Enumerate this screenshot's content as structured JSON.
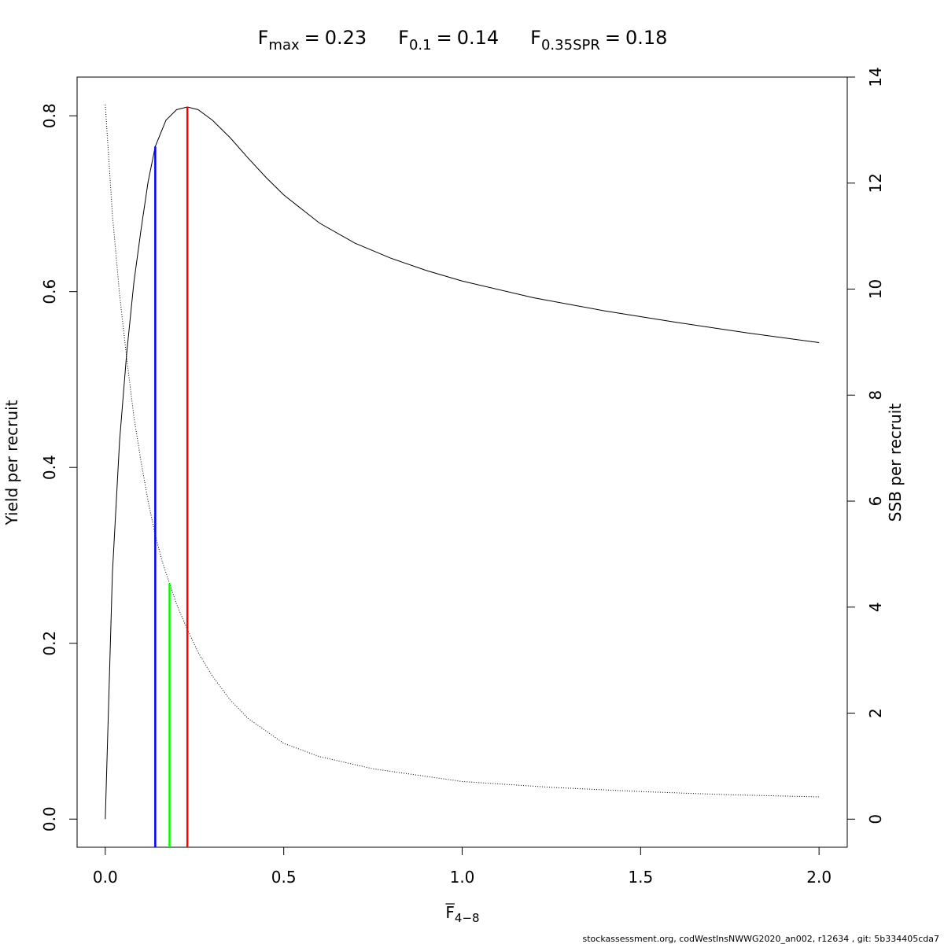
{
  "chart_data": {
    "type": "line",
    "equals": "=",
    "reference_points": [
      {
        "symbol": "F",
        "subscript": "max",
        "value": 0.23,
        "color": "#ff0000",
        "line_top": 0.81,
        "line_axis": "y"
      },
      {
        "symbol": "F",
        "subscript": "0.1",
        "value": 0.14,
        "color": "#0000ff",
        "line_top": 0.765,
        "line_axis": "y"
      },
      {
        "symbol": "F",
        "subscript": "0.35SPR",
        "value": 0.18,
        "color": "#00ff00",
        "line_top": 4.45,
        "line_axis": "y2"
      }
    ],
    "xlabel": "F",
    "xlabel_subscript": "4−8",
    "ylabel": "Yield per recruit",
    "y2label": "SSB per recruit",
    "footer": "stockassessment.org, codWestInsNWWG2020_an002, r12634 , git: 5b334405cda7",
    "series": [
      {
        "axis": "y",
        "color": "#000000",
        "style": "solid",
        "x": [
          0,
          0.02,
          0.04,
          0.06,
          0.08,
          0.1,
          0.12,
          0.14,
          0.17,
          0.2,
          0.23,
          0.26,
          0.3,
          0.35,
          0.4,
          0.45,
          0.5,
          0.6,
          0.7,
          0.8,
          0.9,
          1.0,
          1.2,
          1.4,
          1.6,
          1.8,
          2.0
        ],
        "values": [
          0,
          0.28,
          0.43,
          0.53,
          0.61,
          0.67,
          0.725,
          0.765,
          0.795,
          0.807,
          0.81,
          0.807,
          0.795,
          0.775,
          0.752,
          0.73,
          0.71,
          0.678,
          0.655,
          0.638,
          0.624,
          0.612,
          0.593,
          0.578,
          0.565,
          0.553,
          0.542
        ]
      },
      {
        "axis": "y2",
        "color": "#000000",
        "style": "dotted",
        "x": [
          0,
          0.02,
          0.04,
          0.06,
          0.08,
          0.1,
          0.12,
          0.14,
          0.16,
          0.18,
          0.2,
          0.23,
          0.26,
          0.3,
          0.35,
          0.4,
          0.5,
          0.6,
          0.75,
          1.0,
          1.25,
          1.5,
          1.75,
          2.0
        ],
        "values": [
          13.48,
          11.4,
          9.9,
          8.7,
          7.6,
          6.75,
          6.0,
          5.36,
          4.85,
          4.45,
          4.05,
          3.58,
          3.15,
          2.7,
          2.25,
          1.9,
          1.43,
          1.18,
          0.95,
          0.71,
          0.6,
          0.52,
          0.46,
          0.42
        ]
      }
    ],
    "xlim": [
      -0.079,
      2.079
    ],
    "xticks": [
      {
        "value": 0,
        "label": "0.0"
      },
      {
        "value": 0.5,
        "label": "0.5"
      },
      {
        "value": 1,
        "label": "1.0"
      },
      {
        "value": 1.5,
        "label": "1.5"
      },
      {
        "value": 2,
        "label": "2.0"
      }
    ],
    "ylim": [
      -0.032,
      0.844
    ],
    "yticks": [
      {
        "value": 0,
        "label": "0.0"
      },
      {
        "value": 0.2,
        "label": "0.2"
      },
      {
        "value": 0.4,
        "label": "0.4"
      },
      {
        "value": 0.6,
        "label": "0.6"
      },
      {
        "value": 0.8,
        "label": "0.8"
      }
    ],
    "y2lim": [
      -0.53,
      14.0
    ],
    "y2ticks": [
      0,
      2,
      4,
      6,
      8,
      10,
      12,
      14
    ]
  }
}
